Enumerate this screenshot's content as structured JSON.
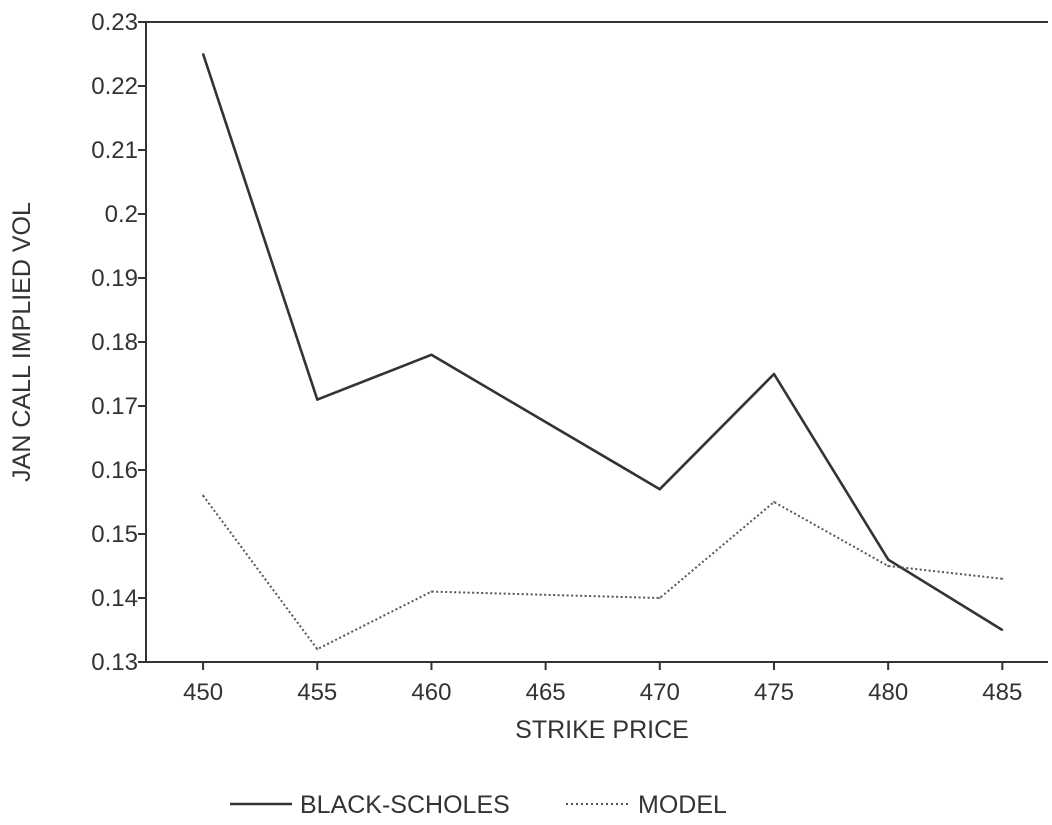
{
  "chart_data": {
    "type": "line",
    "title": "",
    "xlabel": "STRIKE PRICE",
    "ylabel": "JAN CALL IMPLIED VOL",
    "x": [
      450,
      455,
      460,
      465,
      470,
      475,
      480,
      485
    ],
    "x_tick_labels": [
      "450",
      "455",
      "460",
      "465",
      "470",
      "475",
      "480",
      "485"
    ],
    "y_tick_labels": [
      "0.23",
      "0.22",
      "0.21",
      "0.2",
      "0.19",
      "0.18",
      "0.17",
      "0.16",
      "0.15",
      "0.14",
      "0.13"
    ],
    "y_ticks": [
      0.23,
      0.22,
      0.21,
      0.2,
      0.19,
      0.18,
      0.17,
      0.16,
      0.15,
      0.14,
      0.13
    ],
    "xlim": [
      447.5,
      487
    ],
    "ylim": [
      0.13,
      0.23
    ],
    "grid": false,
    "legend_position": "bottom",
    "series": [
      {
        "name": "BLACK-SCHOLES",
        "style": "solid",
        "color": "#333333",
        "x": [
          450,
          455,
          460,
          470,
          475,
          480,
          485
        ],
        "values": [
          0.225,
          0.171,
          0.178,
          0.157,
          0.175,
          0.146,
          0.135
        ]
      },
      {
        "name": "MODEL",
        "style": "dotted",
        "color": "#555555",
        "x": [
          450,
          455,
          460,
          470,
          475,
          480,
          485
        ],
        "values": [
          0.156,
          0.132,
          0.141,
          0.14,
          0.155,
          0.145,
          0.143
        ]
      }
    ]
  }
}
